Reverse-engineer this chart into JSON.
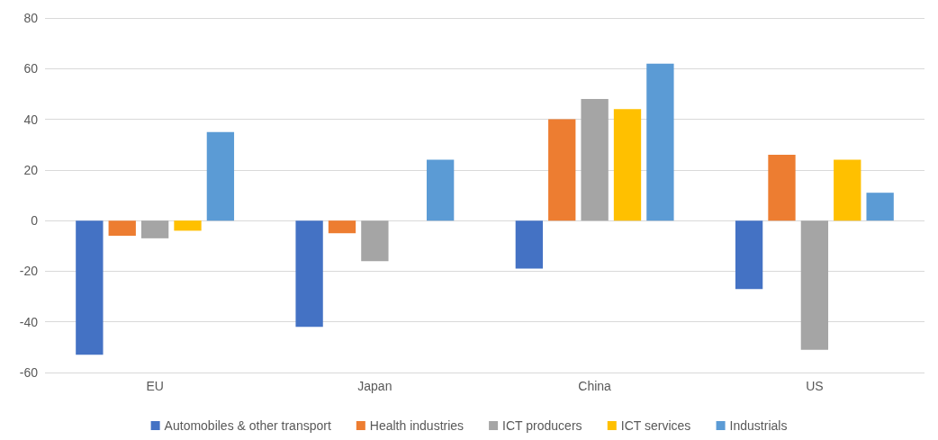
{
  "chart_data": {
    "type": "bar",
    "categories": [
      "EU",
      "Japan",
      "China",
      "US"
    ],
    "series": [
      {
        "name": "Automobiles & other transport",
        "color": "#4472c4",
        "values": [
          -53,
          -42,
          -19,
          -27
        ]
      },
      {
        "name": "Health industries",
        "color": "#ed7d31",
        "values": [
          -6,
          -5,
          40,
          26
        ]
      },
      {
        "name": "ICT producers",
        "color": "#a5a5a5",
        "values": [
          -7,
          -16,
          48,
          -51
        ]
      },
      {
        "name": "ICT services",
        "color": "#ffc000",
        "values": [
          -4,
          null,
          44,
          24
        ]
      },
      {
        "name": "Industrials",
        "color": "#5b9bd5",
        "values": [
          35,
          24,
          62,
          11
        ]
      }
    ],
    "ylim": [
      -60,
      80
    ],
    "yticks": [
      -60,
      -40,
      -20,
      0,
      20,
      40,
      60,
      80
    ],
    "grid": "y",
    "legend": "bottom"
  }
}
